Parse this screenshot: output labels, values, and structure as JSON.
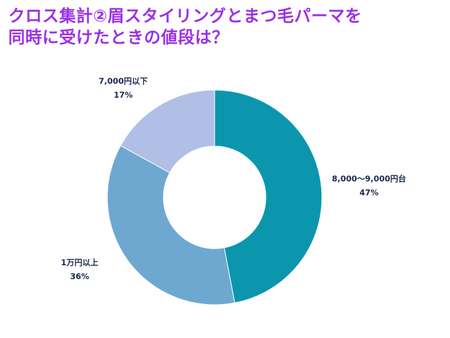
{
  "title_line1": "クロス集計②眉スタイリングとまつ毛パーマを",
  "title_line2": "同時に受けたときの値段は？",
  "chart_data": {
    "type": "pie",
    "variant": "donut",
    "title": "クロス集計②眉スタイリングとまつ毛パーマを同時に受けたときの値段は？",
    "slices": [
      {
        "label": "8,000～9,000円台",
        "value": 47,
        "percent_label": "47%",
        "color": "#0b96ae"
      },
      {
        "label": "1万円以上",
        "value": 36,
        "percent_label": "36%",
        "color": "#6ea8d1"
      },
      {
        "label": "7,000円以下",
        "value": 17,
        "percent_label": "17%",
        "color": "#b1bfe6"
      }
    ]
  }
}
